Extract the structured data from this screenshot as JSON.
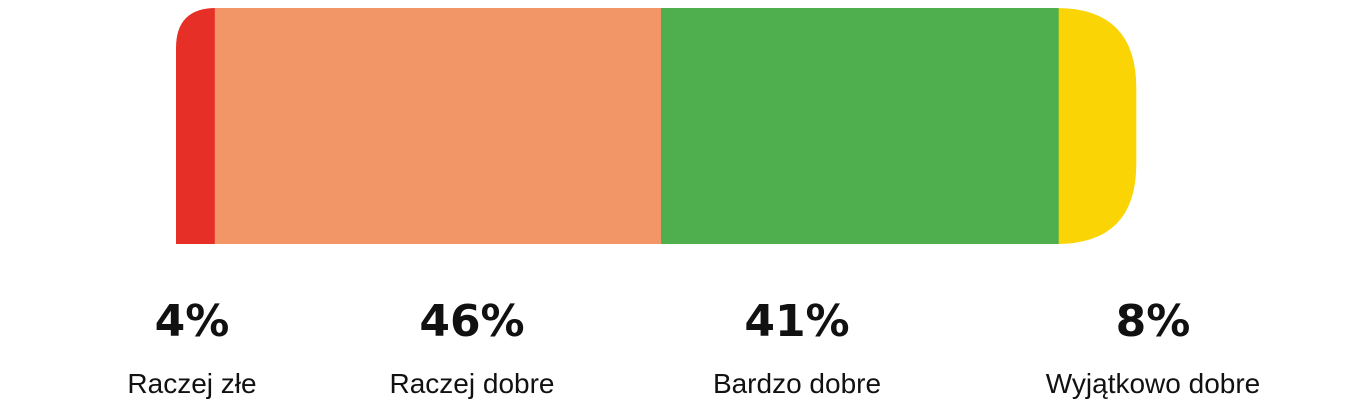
{
  "chart_data": {
    "type": "stacked-bar",
    "series": [
      {
        "name": "Raczej złe",
        "color": "#e63027",
        "values": [
          4
        ],
        "value_labels": [
          "4%"
        ]
      },
      {
        "name": "Raczej dobre",
        "color": "#f29668",
        "values": [
          46
        ],
        "value_labels": [
          "46%"
        ]
      },
      {
        "name": "Bardzo dobre",
        "color": "#4faf4e",
        "values": [
          41
        ],
        "value_labels": [
          "41%"
        ]
      },
      {
        "name": "Wyjątkowo dobre",
        "color": "#fbd405",
        "values": [
          8
        ],
        "value_labels": [
          "8%"
        ]
      }
    ]
  }
}
